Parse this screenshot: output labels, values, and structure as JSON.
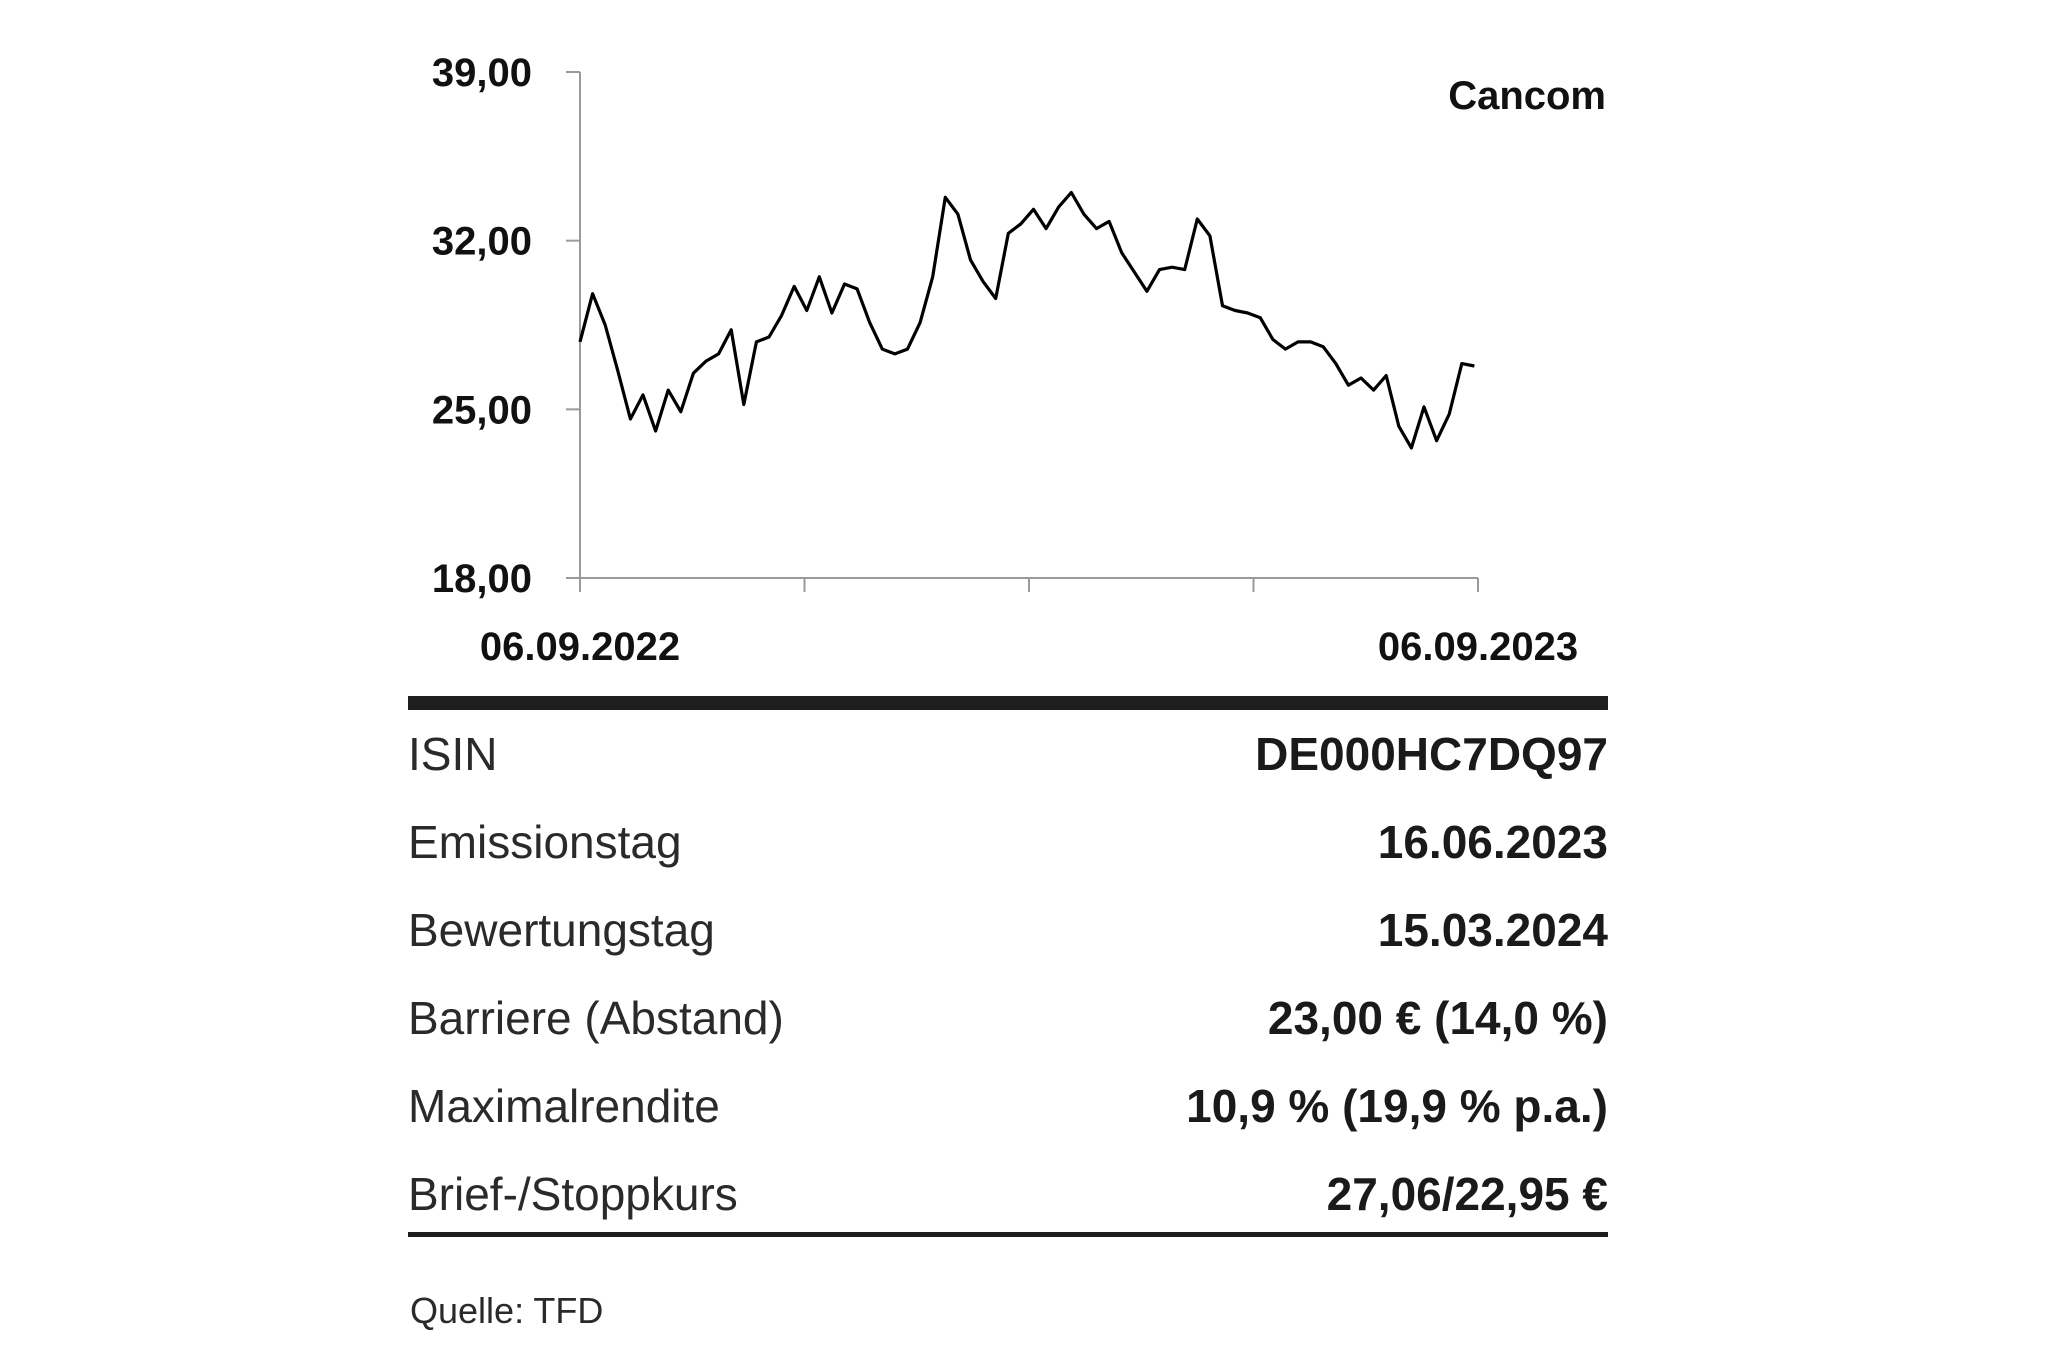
{
  "chart_data": {
    "type": "line",
    "title": "Cancom",
    "ylim": [
      18,
      39
    ],
    "yticks": [
      "39,00",
      "32,00",
      "25,00",
      "18,00"
    ],
    "ytick_values": [
      39,
      32,
      25,
      18
    ],
    "xlim": [
      "06.09.2022",
      "06.09.2023"
    ],
    "xtick_labels": [
      "06.09.2022",
      "06.09.2023"
    ],
    "grid": false,
    "series": [
      {
        "values": [
          27.8,
          29.8,
          28.5,
          26.6,
          24.6,
          25.6,
          24.1,
          25.8,
          24.9,
          26.5,
          27.0,
          27.3,
          28.3,
          25.2,
          27.8,
          28.0,
          28.9,
          30.1,
          29.1,
          30.5,
          29.0,
          30.2,
          30.0,
          28.6,
          27.5,
          27.3,
          27.5,
          28.6,
          30.5,
          33.8,
          33.1,
          31.2,
          30.3,
          29.6,
          32.3,
          32.7,
          33.3,
          32.5,
          33.4,
          34.0,
          33.1,
          32.5,
          32.8,
          31.5,
          30.7,
          29.9,
          30.8,
          30.9,
          30.8,
          32.9,
          32.2,
          29.3,
          29.1,
          29.0,
          28.8,
          27.9,
          27.5,
          27.8,
          27.8,
          27.6,
          26.9,
          26.0,
          26.3,
          25.8,
          26.4,
          24.3,
          23.4,
          25.1,
          23.7,
          24.8,
          26.9,
          26.8
        ]
      }
    ]
  },
  "details": {
    "rows": [
      {
        "label": "ISIN",
        "value": "DE000HC7DQ97"
      },
      {
        "label": "Emissionstag",
        "value": "16.06.2023"
      },
      {
        "label": "Bewertungstag",
        "value": "15.03.2024"
      },
      {
        "label": "Barriere (Abstand)",
        "value": "23,00 € (14,0 %)"
      },
      {
        "label": "Maximalrendite",
        "value": "10,9 % (19,9 % p.a.)"
      },
      {
        "label": "Brief-/Stoppkurs",
        "value": "27,06/22,95 €"
      }
    ]
  },
  "source": "Quelle: TFD"
}
